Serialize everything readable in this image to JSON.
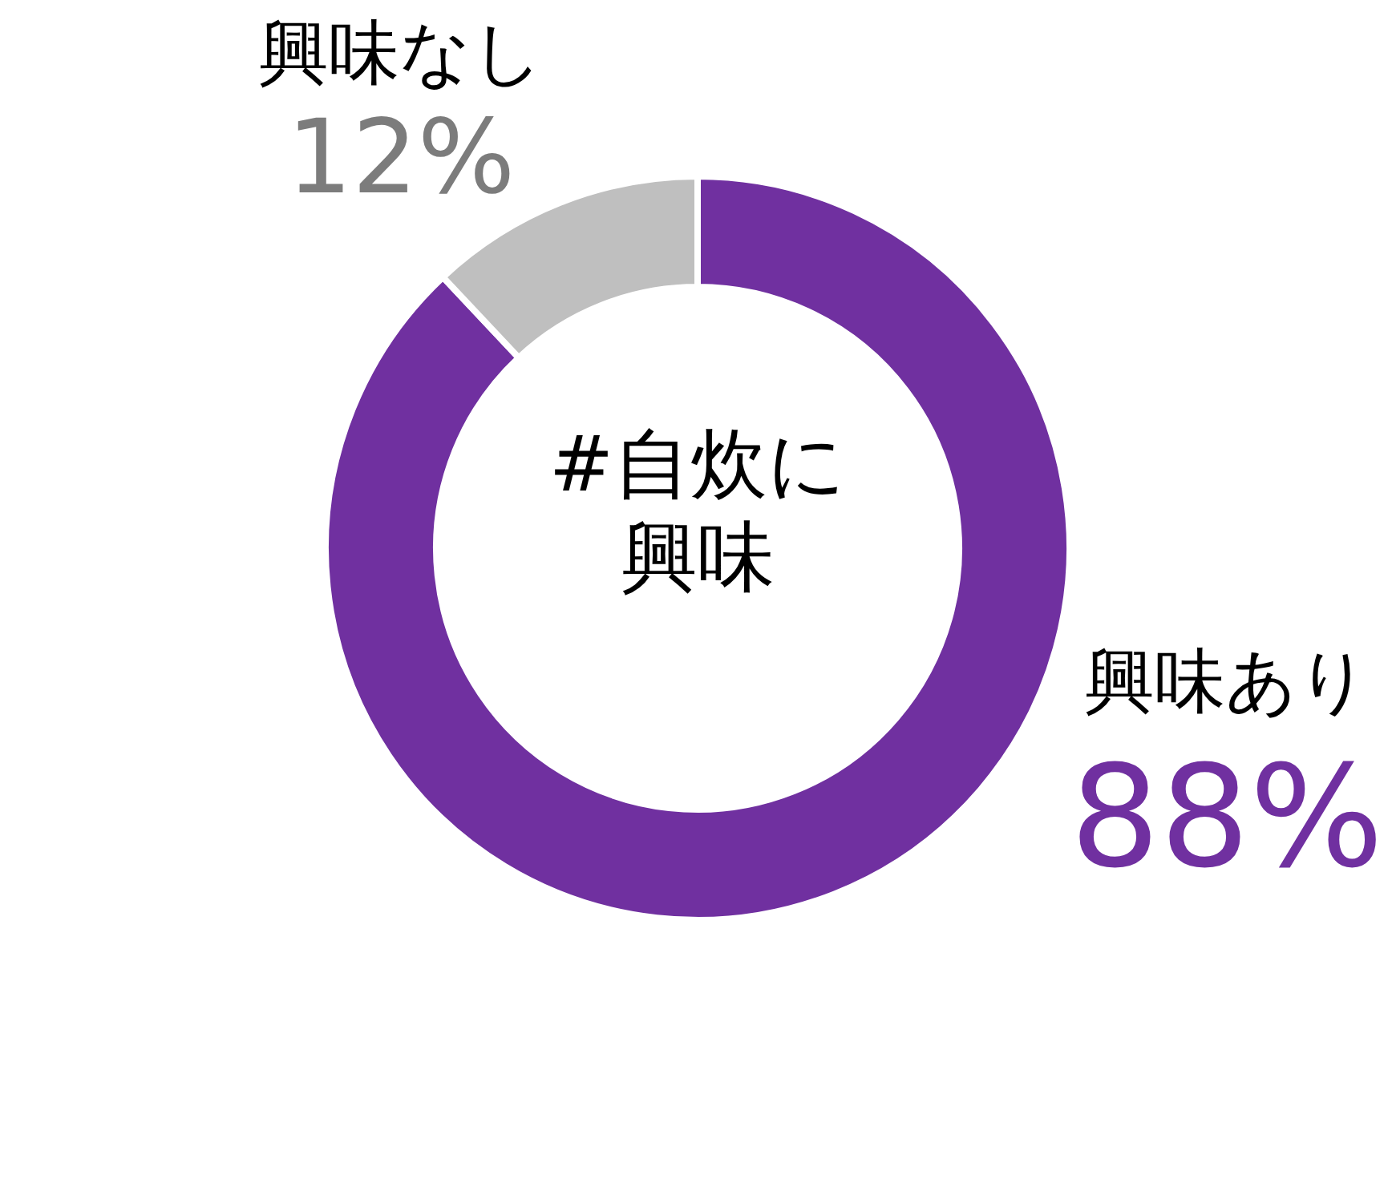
{
  "chart_data": {
    "type": "donut",
    "title": "#自炊に興味",
    "categories": [
      "興味あり",
      "興味なし"
    ],
    "values": [
      88,
      12
    ],
    "colors": [
      "#7030a0",
      "#bfbfbf"
    ],
    "value_labels": [
      "88%",
      "12%"
    ]
  }
}
